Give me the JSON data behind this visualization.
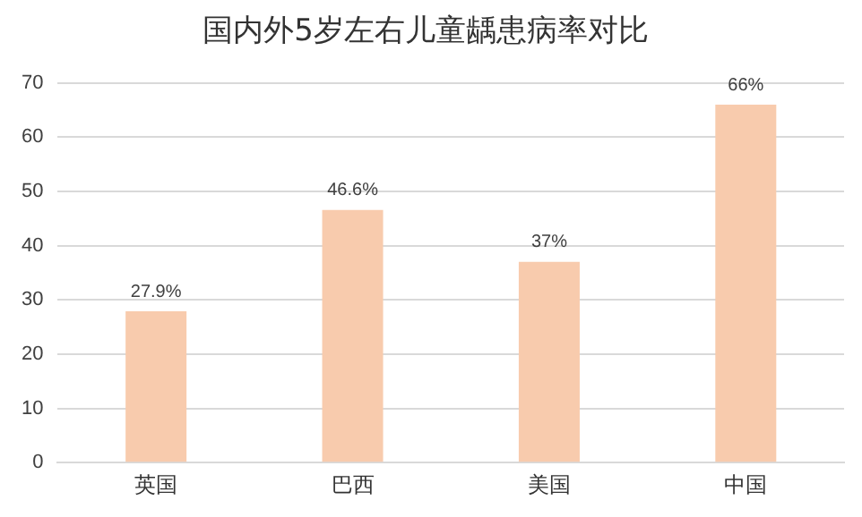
{
  "chart_data": {
    "type": "bar",
    "title": "国内外5岁左右儿童龋患病率对比",
    "categories": [
      "英国",
      "巴西",
      "美国",
      "中国"
    ],
    "values": [
      27.9,
      46.6,
      37,
      66
    ],
    "value_labels": [
      "27.9%",
      "46.6%",
      "37%",
      "66%"
    ],
    "color": "#f8cbad",
    "ylim": [
      0,
      70
    ],
    "yticks": [
      0,
      10,
      20,
      30,
      40,
      50,
      60,
      70
    ],
    "grid": "y",
    "legend": false
  }
}
